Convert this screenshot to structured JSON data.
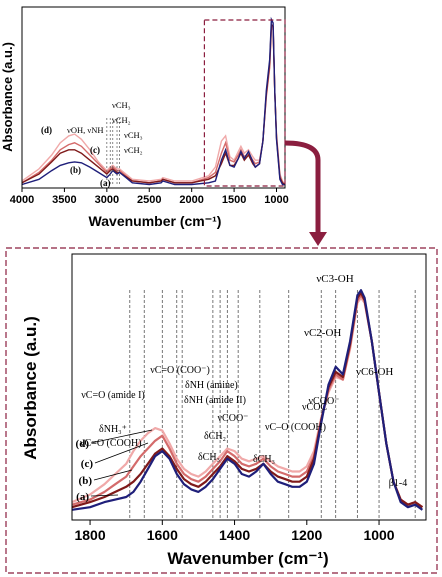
{
  "chart_data": [
    {
      "type": "line",
      "xlabel": "Wavenumber (cm⁻¹)",
      "ylabel": "Absorbance (a.u.)",
      "xlim": [
        4000,
        900
      ],
      "x_reversed": true,
      "ylim": [
        0,
        1
      ],
      "grid": false,
      "xticks": [
        4000,
        3500,
        3000,
        2500,
        2000,
        1500,
        1000
      ],
      "xtick_labels": [
        "4000",
        "3500",
        "3000",
        "2500",
        "2000",
        "1500",
        "1000"
      ],
      "zoom_box_x": [
        1850,
        900
      ],
      "series": [
        {
          "name": "(a)",
          "color": "#1f1f7a",
          "x": [
            4000,
            3800,
            3650,
            3550,
            3450,
            3380,
            3300,
            3200,
            3100,
            3000,
            2960,
            2930,
            2880,
            2850,
            2700,
            2500,
            2360,
            2340,
            2200,
            2000,
            1800,
            1720,
            1650,
            1600,
            1550,
            1500,
            1450,
            1420,
            1380,
            1330,
            1280,
            1250,
            1200,
            1160,
            1120,
            1080,
            1060,
            1040,
            1020,
            1000,
            960,
            930,
            900
          ],
          "y": [
            0.02,
            0.05,
            0.1,
            0.13,
            0.145,
            0.15,
            0.145,
            0.12,
            0.09,
            0.06,
            0.08,
            0.1,
            0.08,
            0.09,
            0.03,
            0.02,
            0.03,
            0.04,
            0.02,
            0.02,
            0.03,
            0.04,
            0.16,
            0.22,
            0.13,
            0.12,
            0.17,
            0.21,
            0.17,
            0.21,
            0.15,
            0.12,
            0.14,
            0.27,
            0.56,
            0.74,
            0.97,
            0.95,
            0.55,
            0.28,
            0.05,
            0.02,
            0.02
          ]
        },
        {
          "name": "(b)",
          "color": "#7f1a1a",
          "x": [
            4000,
            3800,
            3650,
            3550,
            3450,
            3380,
            3300,
            3200,
            3100,
            3000,
            2960,
            2930,
            2880,
            2850,
            2700,
            2500,
            2360,
            2340,
            2200,
            2000,
            1800,
            1720,
            1650,
            1600,
            1550,
            1500,
            1450,
            1420,
            1380,
            1330,
            1280,
            1250,
            1200,
            1160,
            1120,
            1080,
            1060,
            1040,
            1020,
            1000,
            960,
            930,
            900
          ],
          "y": [
            0.03,
            0.08,
            0.15,
            0.2,
            0.22,
            0.22,
            0.2,
            0.16,
            0.12,
            0.08,
            0.1,
            0.11,
            0.09,
            0.09,
            0.04,
            0.03,
            0.04,
            0.05,
            0.03,
            0.03,
            0.05,
            0.07,
            0.14,
            0.2,
            0.13,
            0.13,
            0.17,
            0.2,
            0.16,
            0.19,
            0.14,
            0.12,
            0.14,
            0.27,
            0.54,
            0.72,
            0.94,
            0.93,
            0.55,
            0.29,
            0.06,
            0.03,
            0.02
          ]
        },
        {
          "name": "(c)",
          "color": "#d46b6b",
          "x": [
            4000,
            3800,
            3650,
            3550,
            3450,
            3380,
            3300,
            3200,
            3100,
            3000,
            2960,
            2930,
            2880,
            2850,
            2700,
            2500,
            2360,
            2340,
            2200,
            2000,
            1800,
            1720,
            1650,
            1600,
            1550,
            1500,
            1450,
            1420,
            1380,
            1330,
            1280,
            1250,
            1200,
            1160,
            1120,
            1080,
            1060,
            1040,
            1020,
            1000,
            960,
            930,
            900
          ],
          "y": [
            0.03,
            0.09,
            0.16,
            0.22,
            0.25,
            0.26,
            0.24,
            0.19,
            0.14,
            0.09,
            0.11,
            0.12,
            0.1,
            0.1,
            0.04,
            0.03,
            0.04,
            0.05,
            0.03,
            0.03,
            0.06,
            0.09,
            0.2,
            0.26,
            0.16,
            0.15,
            0.19,
            0.22,
            0.18,
            0.2,
            0.16,
            0.14,
            0.15,
            0.27,
            0.53,
            0.7,
            0.93,
            0.92,
            0.55,
            0.3,
            0.07,
            0.03,
            0.02
          ]
        },
        {
          "name": "(d)",
          "color": "#f0a9a9",
          "x": [
            4000,
            3800,
            3650,
            3550,
            3450,
            3380,
            3300,
            3200,
            3100,
            3000,
            2960,
            2930,
            2880,
            2850,
            2700,
            2500,
            2360,
            2340,
            2200,
            2000,
            1800,
            1720,
            1650,
            1600,
            1550,
            1500,
            1450,
            1420,
            1380,
            1330,
            1280,
            1250,
            1200,
            1160,
            1120,
            1080,
            1060,
            1040,
            1020,
            1000,
            960,
            930,
            900
          ],
          "y": [
            0.04,
            0.11,
            0.19,
            0.26,
            0.3,
            0.31,
            0.28,
            0.22,
            0.15,
            0.1,
            0.12,
            0.13,
            0.11,
            0.11,
            0.05,
            0.04,
            0.05,
            0.06,
            0.04,
            0.04,
            0.07,
            0.12,
            0.27,
            0.3,
            0.18,
            0.16,
            0.21,
            0.24,
            0.2,
            0.22,
            0.18,
            0.16,
            0.16,
            0.27,
            0.52,
            0.69,
            0.92,
            0.91,
            0.55,
            0.31,
            0.08,
            0.04,
            0.02
          ]
        }
      ],
      "annotations": {
        "band_labels": [
          "νOH, νNH",
          "νCH₃",
          "νCH₂",
          "νCH₃",
          "νCH₂"
        ],
        "band_positions": [
          3000,
          2960,
          2930,
          2880,
          2850
        ],
        "curve_labels": [
          "(a)",
          "(b)",
          "(c)",
          "(d)"
        ]
      }
    },
    {
      "type": "line",
      "xlabel": "Wavenumber (cm⁻¹)",
      "ylabel": "Absorbance (a.u.)",
      "xlim": [
        1850,
        870
      ],
      "x_reversed": true,
      "ylim": [
        0,
        1
      ],
      "grid": false,
      "xticks": [
        1800,
        1600,
        1400,
        1200,
        1000
      ],
      "xtick_labels": [
        "1800",
        "1600",
        "1400",
        "1200",
        "1000"
      ],
      "series": [
        {
          "name": "(a)",
          "color": "#1f1f7a",
          "x": [
            1850,
            1800,
            1760,
            1730,
            1700,
            1680,
            1660,
            1640,
            1620,
            1600,
            1580,
            1560,
            1540,
            1520,
            1500,
            1480,
            1460,
            1440,
            1420,
            1400,
            1380,
            1360,
            1340,
            1320,
            1300,
            1280,
            1260,
            1240,
            1220,
            1200,
            1180,
            1160,
            1140,
            1120,
            1100,
            1080,
            1060,
            1050,
            1040,
            1020,
            1000,
            980,
            960,
            940,
            920,
            900,
            880
          ],
          "y": [
            0.04,
            0.05,
            0.07,
            0.08,
            0.09,
            0.11,
            0.15,
            0.2,
            0.25,
            0.27,
            0.24,
            0.18,
            0.14,
            0.12,
            0.11,
            0.13,
            0.16,
            0.2,
            0.24,
            0.22,
            0.18,
            0.17,
            0.19,
            0.22,
            0.18,
            0.15,
            0.14,
            0.13,
            0.13,
            0.15,
            0.22,
            0.38,
            0.53,
            0.6,
            0.57,
            0.7,
            0.88,
            0.9,
            0.87,
            0.7,
            0.5,
            0.3,
            0.15,
            0.07,
            0.05,
            0.06,
            0.04
          ]
        },
        {
          "name": "(b)",
          "color": "#7f1a1a",
          "x": [
            1850,
            1800,
            1760,
            1730,
            1700,
            1680,
            1660,
            1640,
            1620,
            1600,
            1580,
            1560,
            1540,
            1520,
            1500,
            1480,
            1460,
            1440,
            1420,
            1400,
            1380,
            1360,
            1340,
            1320,
            1300,
            1280,
            1260,
            1240,
            1220,
            1200,
            1180,
            1160,
            1140,
            1120,
            1100,
            1080,
            1060,
            1050,
            1040,
            1020,
            1000,
            980,
            960,
            940,
            920,
            900,
            880
          ],
          "y": [
            0.05,
            0.07,
            0.09,
            0.11,
            0.13,
            0.15,
            0.18,
            0.22,
            0.26,
            0.28,
            0.25,
            0.2,
            0.16,
            0.14,
            0.13,
            0.15,
            0.18,
            0.21,
            0.25,
            0.23,
            0.2,
            0.19,
            0.2,
            0.22,
            0.19,
            0.17,
            0.16,
            0.15,
            0.15,
            0.17,
            0.24,
            0.39,
            0.52,
            0.58,
            0.56,
            0.69,
            0.87,
            0.89,
            0.86,
            0.7,
            0.5,
            0.3,
            0.15,
            0.08,
            0.06,
            0.07,
            0.05
          ]
        },
        {
          "name": "(c)",
          "color": "#d46b6b",
          "x": [
            1850,
            1800,
            1760,
            1730,
            1700,
            1680,
            1660,
            1640,
            1620,
            1600,
            1580,
            1560,
            1540,
            1520,
            1500,
            1480,
            1460,
            1440,
            1420,
            1400,
            1380,
            1360,
            1340,
            1320,
            1300,
            1280,
            1260,
            1240,
            1220,
            1200,
            1180,
            1160,
            1140,
            1120,
            1100,
            1080,
            1060,
            1050,
            1040,
            1020,
            1000,
            980,
            960,
            940,
            920,
            900,
            880
          ],
          "y": [
            0.06,
            0.08,
            0.11,
            0.14,
            0.17,
            0.21,
            0.25,
            0.28,
            0.31,
            0.33,
            0.28,
            0.22,
            0.18,
            0.16,
            0.15,
            0.17,
            0.2,
            0.23,
            0.27,
            0.25,
            0.22,
            0.21,
            0.22,
            0.24,
            0.21,
            0.19,
            0.18,
            0.17,
            0.17,
            0.19,
            0.25,
            0.39,
            0.51,
            0.57,
            0.55,
            0.68,
            0.86,
            0.88,
            0.86,
            0.7,
            0.5,
            0.3,
            0.15,
            0.08,
            0.06,
            0.07,
            0.05
          ]
        },
        {
          "name": "(d)",
          "color": "#f0a9a9",
          "x": [
            1850,
            1800,
            1760,
            1730,
            1700,
            1680,
            1660,
            1640,
            1620,
            1600,
            1580,
            1560,
            1540,
            1520,
            1500,
            1480,
            1460,
            1440,
            1420,
            1400,
            1380,
            1360,
            1340,
            1320,
            1300,
            1280,
            1260,
            1240,
            1220,
            1200,
            1180,
            1160,
            1140,
            1120,
            1100,
            1080,
            1060,
            1050,
            1040,
            1020,
            1000,
            980,
            960,
            940,
            920,
            900,
            880
          ],
          "y": [
            0.07,
            0.1,
            0.14,
            0.18,
            0.22,
            0.27,
            0.31,
            0.34,
            0.36,
            0.35,
            0.3,
            0.24,
            0.2,
            0.18,
            0.17,
            0.19,
            0.22,
            0.25,
            0.28,
            0.27,
            0.24,
            0.23,
            0.24,
            0.25,
            0.23,
            0.21,
            0.2,
            0.19,
            0.19,
            0.21,
            0.27,
            0.4,
            0.5,
            0.56,
            0.55,
            0.67,
            0.85,
            0.87,
            0.85,
            0.7,
            0.5,
            0.3,
            0.15,
            0.08,
            0.06,
            0.07,
            0.05
          ]
        }
      ],
      "annotations": {
        "curve_labels": [
          "(a)",
          "(b)",
          "(c)",
          "(d)"
        ],
        "band_lines": [
          1690,
          1650,
          1600,
          1560,
          1545,
          1460,
          1440,
          1420,
          1390,
          1330,
          1250,
          1160,
          1120,
          1060,
          1000,
          900
        ],
        "band_labels": [
          {
            "text": "νC3-OH",
            "wn": 1060
          },
          {
            "text": "νC2-OH",
            "wn": 1120
          },
          {
            "text": "νC6-OH",
            "wn": 1000
          },
          {
            "text": "νCOC",
            "wn": 1160
          },
          {
            "text": "νC=O (COO⁻)",
            "wn": 1600
          },
          {
            "text": "δNH (amine)",
            "wn": 1560
          },
          {
            "text": "δNH (amide II)",
            "wn": 1545
          },
          {
            "text": "νCOO⁻",
            "wn": 1420
          },
          {
            "text": "νCOO⁻",
            "wn": 1330
          },
          {
            "text": "δCH₂",
            "wn": 1440
          },
          {
            "text": "δCH₃",
            "wn": 1460
          },
          {
            "text": "δCH₃",
            "wn": 1390
          },
          {
            "text": "νC–O (COOH)",
            "wn": 1250
          },
          {
            "text": "νC=O (amide I)",
            "wn": 1650
          },
          {
            "text": "δNH₃⁺",
            "wn": 1650
          },
          {
            "text": "νC=O (COOH)",
            "wn": 1690
          },
          {
            "text": "β1-4",
            "wn": 900
          }
        ]
      }
    }
  ]
}
